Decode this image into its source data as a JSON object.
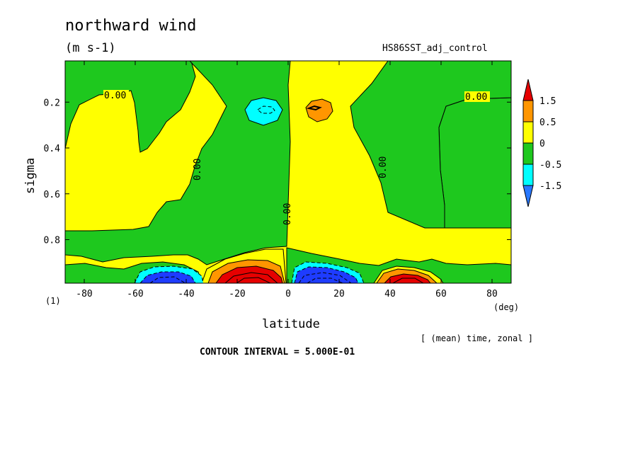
{
  "chart_data": {
    "type": "heatmap",
    "title": "northward wind",
    "units": "(m s-1)",
    "run_label": "HS86SST_adj_control",
    "xlabel": "latitude",
    "ylabel": "sigma",
    "x_unit": "(deg)",
    "y_corner_label": "(1)",
    "xlim": [
      -87.5,
      87.5
    ],
    "ylim": [
      0.02,
      0.99
    ],
    "y_inverted": true,
    "x_ticks": [
      -80,
      -60,
      -40,
      -20,
      0,
      20,
      40,
      60,
      80
    ],
    "x_tick_labels": [
      "-80",
      "-60",
      "-40",
      "-20",
      "0",
      "20",
      "40",
      "60",
      "80"
    ],
    "y_ticks": [
      0.2,
      0.4,
      0.6,
      0.8
    ],
    "y_tick_labels": [
      "0.2",
      "0.4",
      "0.6",
      "0.8"
    ],
    "contour_label": "0.00",
    "contour_interval_text": "CONTOUR INTERVAL = 5.000E-01",
    "averaging_note": "[ (mean) time, zonal ]",
    "legend": {
      "placement": "right",
      "levels": [
        -1.5,
        -0.5,
        0,
        0.5,
        1.5
      ],
      "level_labels": [
        "1.5",
        "0.5",
        "0",
        "-0.5",
        "-1.5"
      ],
      "colors": {
        "below_-1.5": "#2878ff",
        "-1.5_to_-0.5": "#00ffff",
        "-0.5_to_0": "#1ec81e",
        "0_to_0.5": "#ffff00",
        "0.5_to_1.5": "#ff9600",
        "above_1.5": "#e60000",
        "strong_positive": "#e60000",
        "strong_negative": "#1e3cff"
      }
    },
    "features": [
      {
        "sign": "negative",
        "lat_center": -45,
        "sigma_center": 0.97,
        "peak": -2.5
      },
      {
        "sign": "positive",
        "lat_center": -12,
        "sigma_center": 0.97,
        "peak": 3.0
      },
      {
        "sign": "negative",
        "lat_center": 12,
        "sigma_center": 0.97,
        "peak": -3.0
      },
      {
        "sign": "positive",
        "lat_center": 46,
        "sigma_center": 0.97,
        "peak": 2.0
      },
      {
        "sign": "negative",
        "lat_center": -10,
        "sigma_center": 0.24,
        "peak": -1.0
      },
      {
        "sign": "positive",
        "lat_center": 11,
        "sigma_center": 0.23,
        "peak": 1.0
      }
    ]
  }
}
